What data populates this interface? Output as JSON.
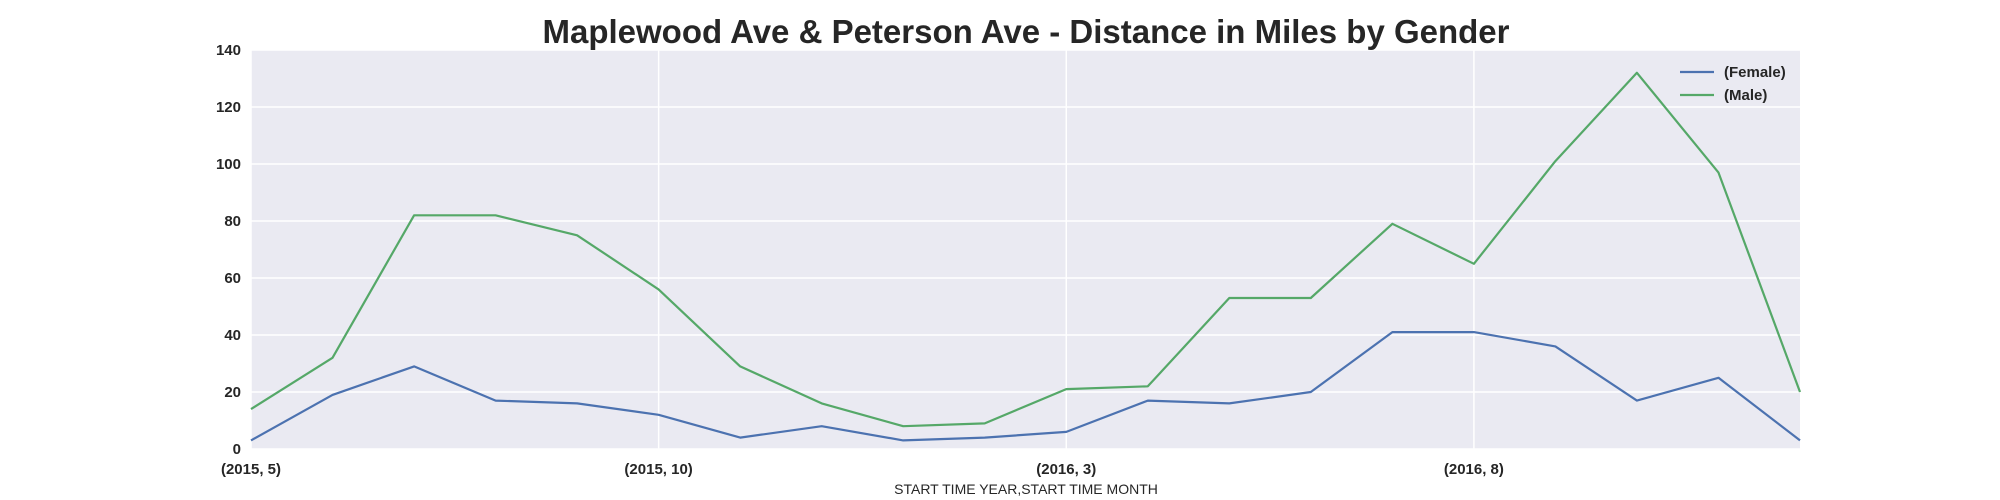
{
  "chart_data": {
    "type": "line",
    "title": "Maplewood Ave & Peterson Ave - Distance in Miles by Gender",
    "xlabel": "START TIME YEAR,START TIME MONTH",
    "ylabel": "",
    "ylim": [
      0,
      140
    ],
    "yticks": [
      0,
      20,
      40,
      60,
      80,
      100,
      120,
      140
    ],
    "x": [
      "(2015, 5)",
      "(2015, 6)",
      "(2015, 7)",
      "(2015, 8)",
      "(2015, 9)",
      "(2015, 10)",
      "(2015, 11)",
      "(2015, 12)",
      "(2016, 1)",
      "(2016, 2)",
      "(2016, 3)",
      "(2016, 4)",
      "(2016, 5)",
      "(2016, 6)",
      "(2016, 7)",
      "(2016, 8)",
      "(2016, 9)",
      "(2016, 10)",
      "(2016, 11)",
      "(2016, 12)"
    ],
    "xticks_shown": [
      {
        "index": 0,
        "label": "(2015, 5)"
      },
      {
        "index": 5,
        "label": "(2015, 10)"
      },
      {
        "index": 10,
        "label": "(2016, 3)"
      },
      {
        "index": 15,
        "label": "(2016, 8)"
      }
    ],
    "grid": true,
    "legend_position": "top-right",
    "series": [
      {
        "name": "(Female)",
        "color": "#4c72b0",
        "values": [
          3,
          19,
          29,
          17,
          16,
          12,
          4,
          8,
          3,
          4,
          6,
          17,
          16,
          20,
          41,
          41,
          36,
          17,
          25,
          3
        ]
      },
      {
        "name": "(Male)",
        "color": "#55a868",
        "values": [
          14,
          32,
          82,
          82,
          75,
          56,
          29,
          16,
          8,
          9,
          21,
          22,
          53,
          53,
          79,
          65,
          101,
          132,
          97,
          20
        ]
      }
    ],
    "colors": {
      "plot_background": "#eaeaf2",
      "grid": "#ffffff",
      "text": "#262626"
    }
  }
}
